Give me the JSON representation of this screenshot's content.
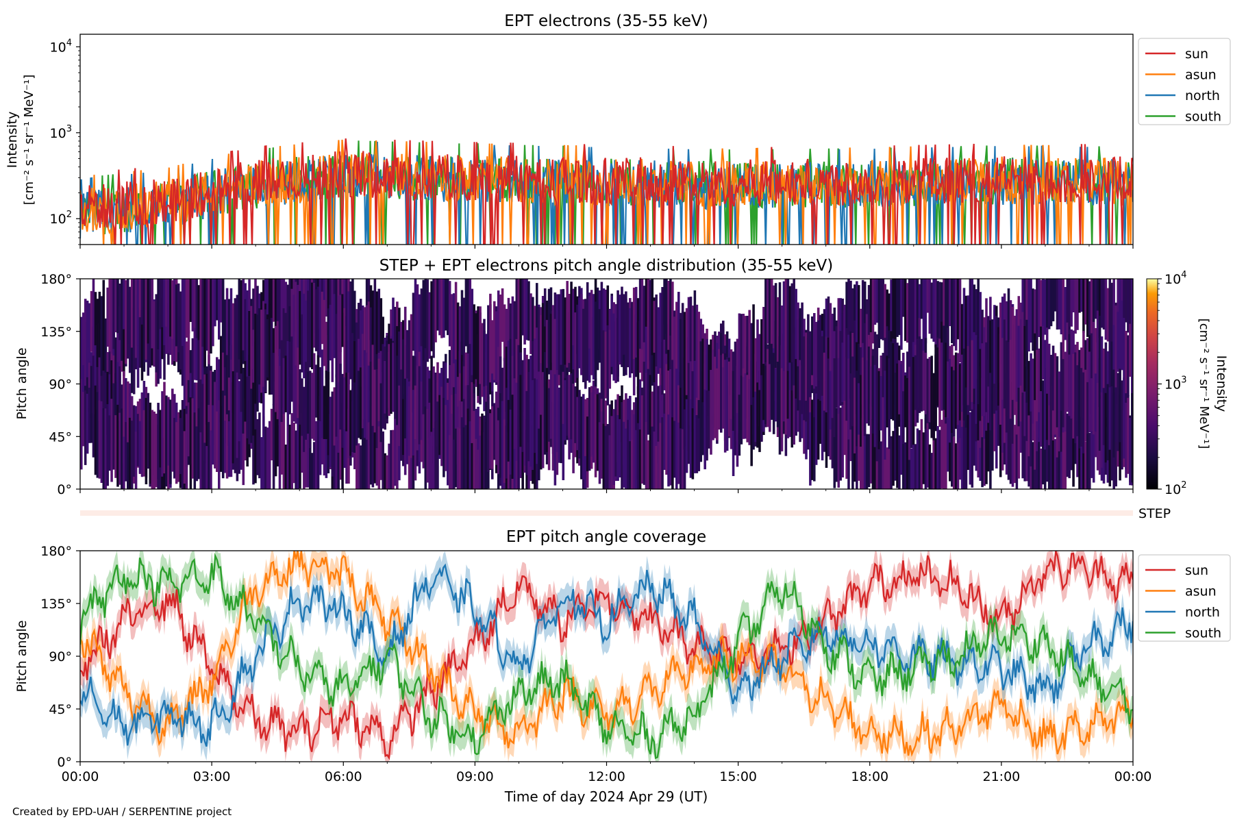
{
  "footer": {
    "credit": "Created by EPD-UAH / SERPENTINE project"
  },
  "colors": {
    "sun": "#d62728",
    "asun": "#ff7f0e",
    "north": "#1f77b4",
    "south": "#2ca02c",
    "step_band": "#fdece6"
  },
  "chart_data": [
    {
      "type": "line",
      "title": "EPT electrons (35-55 keV)",
      "ylabel": "Intensity",
      "yunit": "[cm⁻² s⁻¹ sr⁻¹ MeV⁻¹]",
      "yscale": "log",
      "ylim": [
        50,
        14000
      ],
      "yticks": [
        {
          "value": 100,
          "base": "10",
          "exp": "2"
        },
        {
          "value": 1000,
          "base": "10",
          "exp": "3"
        },
        {
          "value": 10000,
          "base": "10",
          "exp": "4"
        }
      ],
      "xlim": [
        0,
        24
      ],
      "legend": "upper-right-outside",
      "series": [
        {
          "name": "sun",
          "baseline_trend": [
            [
              0,
              130
            ],
            [
              2,
              160
            ],
            [
              4,
              260
            ],
            [
              6,
              330
            ],
            [
              9,
              300
            ],
            [
              12,
              280
            ],
            [
              15,
              260
            ],
            [
              18,
              270
            ],
            [
              21,
              290
            ],
            [
              24,
              280
            ]
          ]
        },
        {
          "name": "asun",
          "baseline_trend": [
            [
              0,
              120
            ],
            [
              2,
              150
            ],
            [
              4,
              250
            ],
            [
              6,
              320
            ],
            [
              9,
              290
            ],
            [
              12,
              270
            ],
            [
              15,
              250
            ],
            [
              18,
              260
            ],
            [
              21,
              280
            ],
            [
              24,
              270
            ]
          ]
        },
        {
          "name": "north",
          "baseline_trend": [
            [
              0,
              110
            ],
            [
              2,
              140
            ],
            [
              4,
              240
            ],
            [
              6,
              310
            ],
            [
              9,
              280
            ],
            [
              12,
              260
            ],
            [
              15,
              240
            ],
            [
              18,
              250
            ],
            [
              21,
              270
            ],
            [
              24,
              260
            ]
          ]
        },
        {
          "name": "south",
          "baseline_trend": [
            [
              0,
              115
            ],
            [
              2,
              145
            ],
            [
              4,
              245
            ],
            [
              6,
              315
            ],
            [
              9,
              285
            ],
            [
              12,
              265
            ],
            [
              15,
              245
            ],
            [
              18,
              255
            ],
            [
              21,
              275
            ],
            [
              24,
              265
            ]
          ]
        }
      ]
    },
    {
      "type": "heatmap",
      "title": "STEP + EPT electrons pitch angle distribution (35-55 keV)",
      "ylabel": "Pitch angle",
      "yticks": [
        "0°",
        "45°",
        "90°",
        "135°",
        "180°"
      ],
      "ylim": [
        0,
        180
      ],
      "xlim": [
        0,
        24
      ],
      "colorbar": {
        "label": "Intensity",
        "unit": "[cm⁻² s⁻¹ sr⁻¹ MeV⁻¹]",
        "scale": "log",
        "range": [
          100,
          10000
        ],
        "ticks": [
          {
            "value": 100,
            "base": "10",
            "exp": "2"
          },
          {
            "value": 1000,
            "base": "10",
            "exp": "3"
          },
          {
            "value": 10000,
            "base": "10",
            "exp": "4"
          }
        ],
        "colormap": "inferno"
      }
    },
    {
      "type": "bar",
      "label": "STEP"
    },
    {
      "type": "line",
      "title": "EPT pitch angle coverage",
      "ylabel": "Pitch angle",
      "xlabel": "Time of day 2024 Apr 29 (UT)",
      "yticks": [
        "0°",
        "45°",
        "90°",
        "135°",
        "180°"
      ],
      "ylim": [
        0,
        180
      ],
      "xlim": [
        0,
        24
      ],
      "xticks": [
        "00:00",
        "03:00",
        "06:00",
        "09:00",
        "12:00",
        "15:00",
        "18:00",
        "21:00",
        "00:00"
      ],
      "legend": "upper-right-outside",
      "series": [
        {
          "name": "sun",
          "x": [
            0,
            1,
            2,
            3,
            4,
            5,
            6,
            7,
            8,
            9,
            10,
            11,
            12,
            13,
            14,
            15,
            16,
            17,
            18,
            19,
            20,
            21,
            22,
            23,
            24
          ],
          "y": [
            80,
            120,
            140,
            80,
            35,
            25,
            40,
            20,
            60,
            100,
            150,
            120,
            140,
            120,
            100,
            90,
            95,
            120,
            150,
            160,
            150,
            120,
            165,
            165,
            150
          ]
        },
        {
          "name": "asun",
          "x": [
            0,
            1,
            2,
            3,
            4,
            5,
            6,
            7,
            8,
            9,
            10,
            11,
            12,
            13,
            14,
            15,
            16,
            17,
            18,
            19,
            20,
            21,
            22,
            23,
            24
          ],
          "y": [
            110,
            60,
            30,
            70,
            150,
            170,
            160,
            120,
            80,
            40,
            25,
            60,
            40,
            60,
            80,
            90,
            80,
            50,
            25,
            20,
            30,
            50,
            20,
            30,
            40
          ]
        },
        {
          "name": "north",
          "x": [
            0,
            1,
            2,
            3,
            4,
            5,
            6,
            7,
            8,
            9,
            10,
            11,
            12,
            13,
            14,
            15,
            16,
            17,
            18,
            19,
            20,
            21,
            22,
            23,
            24
          ],
          "y": [
            60,
            30,
            40,
            30,
            90,
            140,
            130,
            90,
            160,
            130,
            80,
            140,
            120,
            150,
            120,
            60,
            90,
            110,
            100,
            90,
            85,
            80,
            60,
            100,
            120
          ]
        },
        {
          "name": "south",
          "x": [
            0,
            1,
            2,
            3,
            4,
            5,
            6,
            7,
            8,
            9,
            10,
            11,
            12,
            13,
            14,
            15,
            16,
            17,
            18,
            19,
            20,
            21,
            22,
            23,
            24
          ],
          "y": [
            120,
            160,
            150,
            160,
            120,
            80,
            60,
            90,
            40,
            20,
            60,
            70,
            30,
            20,
            40,
            100,
            150,
            100,
            70,
            80,
            90,
            110,
            100,
            70,
            50
          ]
        }
      ]
    }
  ]
}
